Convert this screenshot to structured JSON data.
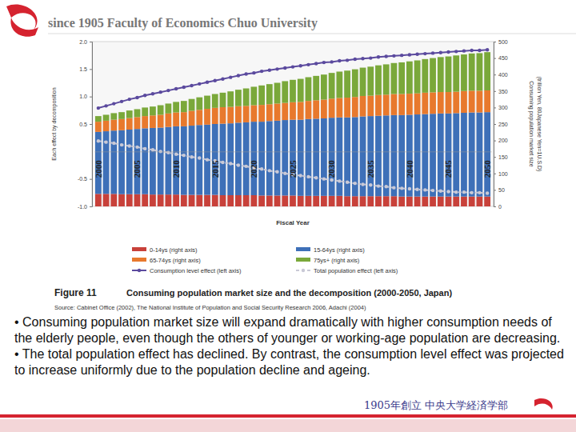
{
  "header": "since 1905 Faculty of  Economics Chuo University",
  "caption": {
    "label": "Figure 11",
    "text": "Consuming population market size and the decomposition (2000-2050, Japan)"
  },
  "source": "Source: Cabinet Office (2002), The National Institute of Population and Social Security Research 2006, Adachi (2004)",
  "bullets": [
    "• Consuming population market size will expand dramatically with higher consumption needs of the elderly people, even though the others of younger or working-age population are decreasing.",
    "• The total population effect has declined. By contrast, the consumption level effect was projected to increase uniformly due to the population decline and ageing."
  ],
  "footer": "1905年創立 中央大学経済学部",
  "chart_data": {
    "type": "bar",
    "stacked": true,
    "legend": "bottom",
    "x_label": "Fiscal Year",
    "y_label": "Each effect by decomposition",
    "y2_label": [
      "Consuming population market size",
      "(trillion Yen, 80Japanese Yen=1U.S.D)"
    ],
    "categories": [
      "2000",
      null,
      null,
      null,
      null,
      "2005",
      null,
      null,
      null,
      null,
      "2010",
      null,
      null,
      null,
      null,
      "2015",
      null,
      null,
      null,
      null,
      "2020",
      null,
      null,
      null,
      null,
      "2025",
      null,
      null,
      null,
      null,
      "2030",
      null,
      null,
      null,
      null,
      "2035",
      null,
      null,
      null,
      null,
      "2040",
      null,
      null,
      null,
      null,
      "2045",
      null,
      null,
      null,
      null,
      "2050"
    ],
    "ylim": [
      -1,
      2
    ],
    "yticks": [
      {
        "value": 2,
        "label": "2.0"
      },
      {
        "value": 1.5,
        "label": "1.5"
      },
      {
        "value": 1,
        "label": "1.0"
      },
      {
        "value": 0.5,
        "label": "0.5"
      },
      {
        "value": -0.5,
        "label": "-0.5"
      },
      {
        "value": -1,
        "label": "-1.0"
      }
    ],
    "y2lim": [
      0,
      500
    ],
    "y2ticks": [
      0,
      50,
      100,
      150,
      200,
      250,
      300,
      350,
      400,
      450,
      500
    ],
    "series": [
      {
        "name": "0-14ys (right axis)",
        "type": "bar",
        "axis": "y2",
        "color": "#c8413a",
        "values": [
          38,
          38,
          38,
          37,
          37,
          37,
          37,
          36,
          36,
          36,
          36,
          35,
          35,
          35,
          35,
          35,
          34,
          34,
          34,
          34,
          34,
          33,
          33,
          33,
          33,
          33,
          32,
          32,
          32,
          32,
          32,
          32,
          31,
          31,
          31,
          31,
          31,
          31,
          31,
          30,
          30,
          30,
          30,
          30,
          30,
          30,
          30,
          30,
          30,
          30,
          30
        ]
      },
      {
        "name": "15-64ys (right axis)",
        "type": "bar",
        "axis": "y2",
        "color": "#3e70b8",
        "values": [
          188,
          190,
          192,
          194,
          196,
          198,
          200,
          202,
          203,
          205,
          207,
          208,
          210,
          212,
          213,
          215,
          217,
          218,
          220,
          221,
          223,
          224,
          226,
          227,
          229,
          230,
          231,
          233,
          234,
          235,
          237,
          238,
          239,
          240,
          242,
          243,
          244,
          245,
          246,
          247,
          248,
          249,
          250,
          251,
          252,
          252,
          253,
          254,
          255,
          255,
          256
        ]
      },
      {
        "name": "65-74ys (right axis)",
        "type": "bar",
        "axis": "y2",
        "color": "#e8792d",
        "values": [
          31,
          32,
          33,
          34,
          35,
          36,
          37,
          38,
          39,
          41,
          42,
          43,
          45,
          46,
          48,
          49,
          50,
          50,
          50,
          50,
          50,
          51,
          51,
          52,
          52,
          53,
          54,
          55,
          56,
          57,
          58,
          59,
          60,
          61,
          62,
          62,
          63,
          63,
          64,
          64,
          64,
          64,
          65,
          65,
          65,
          65,
          65,
          66,
          66,
          66,
          66
        ]
      },
      {
        "name": "75ys+ (right axis)",
        "type": "bar",
        "axis": "y2",
        "color": "#7aa83a",
        "values": [
          17,
          18,
          20,
          21,
          23,
          24,
          26,
          27,
          29,
          30,
          32,
          34,
          36,
          38,
          40,
          42,
          44,
          47,
          50,
          53,
          56,
          59,
          61,
          63,
          66,
          68,
          70,
          72,
          74,
          76,
          78,
          80,
          82,
          84,
          86,
          88,
          90,
          92,
          94,
          96,
          98,
          100,
          102,
          104,
          106,
          108,
          110,
          111,
          113,
          114,
          116
        ]
      },
      {
        "name": "Consumption level effect (left axis)",
        "type": "line",
        "color": "#5b4a9e",
        "marker": "circle",
        "line_style": "solid",
        "values": [
          0.79,
          0.83,
          0.87,
          0.91,
          0.95,
          0.98,
          1.02,
          1.05,
          1.08,
          1.11,
          1.14,
          1.17,
          1.2,
          1.23,
          1.26,
          1.29,
          1.32,
          1.35,
          1.38,
          1.41,
          1.43,
          1.46,
          1.48,
          1.5,
          1.52,
          1.54,
          1.56,
          1.58,
          1.6,
          1.62,
          1.63,
          1.65,
          1.66,
          1.68,
          1.69,
          1.7,
          1.72,
          1.73,
          1.74,
          1.75,
          1.76,
          1.77,
          1.78,
          1.79,
          1.8,
          1.81,
          1.82,
          1.83,
          1.84,
          1.84,
          1.85
        ]
      },
      {
        "name": "Total population effect (left axis)",
        "type": "line",
        "color": "#c9c9d6",
        "marker": "circle",
        "line_style": "dashed",
        "values": [
          0.19,
          0.17,
          0.15,
          0.12,
          0.1,
          0.08,
          0.05,
          0.03,
          0.0,
          -0.02,
          -0.05,
          -0.07,
          -0.1,
          -0.12,
          -0.15,
          -0.17,
          -0.2,
          -0.22,
          -0.25,
          -0.27,
          -0.3,
          -0.32,
          -0.35,
          -0.37,
          -0.4,
          -0.42,
          -0.44,
          -0.46,
          -0.48,
          -0.5,
          -0.52,
          -0.54,
          -0.56,
          -0.58,
          -0.6,
          -0.61,
          -0.63,
          -0.64,
          -0.66,
          -0.67,
          -0.68,
          -0.69,
          -0.7,
          -0.71,
          -0.72,
          -0.73,
          -0.74,
          -0.74,
          -0.75,
          -0.75,
          -0.76
        ]
      }
    ]
  }
}
